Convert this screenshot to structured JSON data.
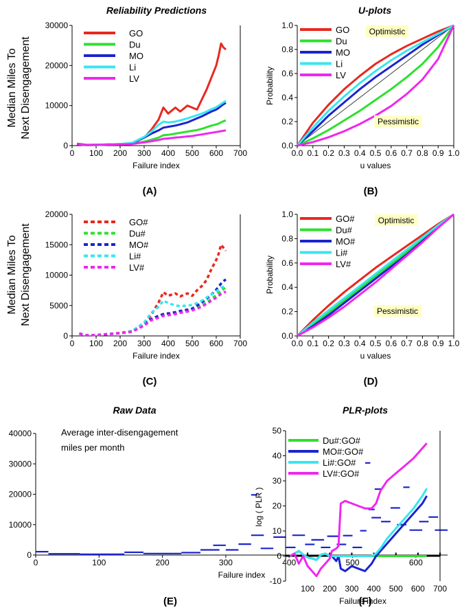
{
  "captions": {
    "a": "(A)",
    "b": "(B)",
    "c": "(C)",
    "d": "(D)",
    "e": "(E)",
    "f": "(F)"
  },
  "shared_ylabel": [
    "Median Miles To",
    "Next Disengagement"
  ],
  "chart_data": [
    {
      "id": "A",
      "type": "line",
      "title": "Reliability Predictions",
      "xlabel": "Failure index",
      "ylabel": "",
      "xlim": [
        0,
        700
      ],
      "ylim": [
        0,
        30000
      ],
      "xticks": [
        0,
        100,
        200,
        300,
        400,
        500,
        600,
        700
      ],
      "yticks": [
        0,
        10000,
        20000,
        30000
      ],
      "legend_position": "top-left",
      "x": [
        20,
        60,
        100,
        150,
        200,
        250,
        300,
        330,
        360,
        380,
        400,
        430,
        450,
        480,
        500,
        520,
        540,
        560,
        580,
        600,
        610,
        620,
        630,
        640
      ],
      "series": [
        {
          "name": "GO",
          "color": "#e8281e",
          "values": [
            500,
            200,
            250,
            300,
            400,
            600,
            2000,
            4000,
            6500,
            9500,
            8000,
            9500,
            8500,
            10000,
            9500,
            9000,
            11500,
            14000,
            17000,
            20000,
            22500,
            25500,
            24500,
            24000
          ]
        },
        {
          "name": "Du",
          "color": "#2ee02e",
          "values": [
            400,
            150,
            150,
            250,
            350,
            500,
            1000,
            1500,
            2000,
            2600,
            2700,
            3000,
            3200,
            3500,
            3700,
            3900,
            4200,
            4600,
            5000,
            5300,
            5500,
            5800,
            6100,
            6300
          ]
        },
        {
          "name": "MO",
          "color": "#1b24cc",
          "values": [
            400,
            150,
            200,
            300,
            400,
            600,
            2000,
            3000,
            3800,
            4500,
            4700,
            5000,
            5300,
            5800,
            6300,
            6800,
            7300,
            7900,
            8500,
            9000,
            9400,
            9900,
            10300,
            10700
          ]
        },
        {
          "name": "Li",
          "color": "#38e6f0",
          "values": [
            400,
            150,
            200,
            300,
            400,
            700,
            2200,
            3500,
            5200,
            6000,
            5800,
            6000,
            6300,
            6800,
            7200,
            7600,
            8000,
            8500,
            9100,
            9600,
            10000,
            10400,
            10800,
            11200
          ]
        },
        {
          "name": "LV",
          "color": "#ee28ee",
          "values": [
            400,
            100,
            150,
            250,
            300,
            400,
            800,
            1100,
            1400,
            1700,
            1800,
            2000,
            2100,
            2300,
            2400,
            2600,
            2800,
            3000,
            3200,
            3400,
            3500,
            3600,
            3700,
            3800
          ]
        }
      ]
    },
    {
      "id": "B",
      "type": "line",
      "title": "U-plots",
      "xlabel": "u values",
      "ylabel": "Probability",
      "xlim": [
        0,
        1
      ],
      "ylim": [
        0,
        1
      ],
      "xtick_labels": [
        "0.0",
        "0.1",
        "0.2",
        "0.3",
        "0.4",
        "0.5",
        "0.6",
        "0.7",
        "0.8",
        "0.9",
        "1.0"
      ],
      "ytick_labels": [
        "0.0",
        "0.2",
        "0.4",
        "0.6",
        "0.8",
        "1.0"
      ],
      "legend_position": "top-left",
      "annotations": [
        "Optimistic",
        "Pessimistic"
      ],
      "x": [
        0,
        0.1,
        0.2,
        0.3,
        0.4,
        0.5,
        0.6,
        0.7,
        0.8,
        0.9,
        1.0
      ],
      "series": [
        {
          "name": "GO",
          "color": "#e8281e",
          "values": [
            0,
            0.19,
            0.34,
            0.47,
            0.58,
            0.68,
            0.76,
            0.83,
            0.89,
            0.95,
            1.0
          ]
        },
        {
          "name": "Du",
          "color": "#2ee02e",
          "values": [
            0,
            0.06,
            0.13,
            0.21,
            0.29,
            0.38,
            0.47,
            0.57,
            0.68,
            0.82,
            1.0
          ]
        },
        {
          "name": "MO",
          "color": "#1b24cc",
          "values": [
            0,
            0.12,
            0.25,
            0.36,
            0.47,
            0.57,
            0.66,
            0.75,
            0.84,
            0.92,
            1.0
          ]
        },
        {
          "name": "Li",
          "color": "#38e6f0",
          "values": [
            0,
            0.15,
            0.29,
            0.41,
            0.52,
            0.62,
            0.71,
            0.79,
            0.86,
            0.93,
            1.0
          ]
        },
        {
          "name": "LV",
          "color": "#ee28ee",
          "values": [
            0,
            0.03,
            0.07,
            0.12,
            0.18,
            0.25,
            0.33,
            0.43,
            0.55,
            0.72,
            1.0
          ]
        }
      ]
    },
    {
      "id": "C",
      "type": "line",
      "title": "",
      "xlabel": "Failure index",
      "ylabel": "",
      "xlim": [
        0,
        700
      ],
      "ylim": [
        0,
        20000
      ],
      "xticks": [
        0,
        100,
        200,
        300,
        400,
        500,
        600,
        700
      ],
      "yticks": [
        0,
        5000,
        10000,
        15000,
        20000
      ],
      "legend_position": "top-left",
      "line_style": "dotted",
      "x": [
        30,
        60,
        100,
        150,
        200,
        250,
        300,
        330,
        360,
        380,
        400,
        430,
        450,
        480,
        500,
        520,
        540,
        560,
        580,
        600,
        610,
        620,
        630,
        640
      ],
      "series": [
        {
          "name": "GO#",
          "color": "#e8281e",
          "values": [
            400,
            100,
            150,
            300,
            500,
            800,
            2000,
            3500,
            5500,
            7200,
            6600,
            7000,
            6500,
            7000,
            6600,
            7500,
            8200,
            9200,
            11000,
            12500,
            13500,
            15000,
            14500,
            14000
          ]
        },
        {
          "name": "Du#",
          "color": "#2ee02e",
          "values": [
            400,
            100,
            150,
            300,
            450,
            700,
            1800,
            2600,
            3100,
            3400,
            3500,
            3700,
            3900,
            4100,
            4300,
            4600,
            5000,
            5500,
            6100,
            6700,
            7100,
            7400,
            7700,
            8000
          ]
        },
        {
          "name": "MO#",
          "color": "#1b24cc",
          "values": [
            400,
            100,
            150,
            300,
            450,
            700,
            1900,
            2800,
            3300,
            3600,
            3700,
            3900,
            4100,
            4300,
            4500,
            5000,
            5500,
            6100,
            6800,
            7600,
            8100,
            8600,
            9000,
            9300
          ]
        },
        {
          "name": "Li#",
          "color": "#38e6f0",
          "values": [
            400,
            100,
            150,
            300,
            450,
            800,
            2200,
            3800,
            4800,
            5800,
            5400,
            5000,
            4900,
            5000,
            5100,
            5400,
            5800,
            6300,
            6800,
            7300,
            7600,
            7900,
            8100,
            8300
          ]
        },
        {
          "name": "LV#",
          "color": "#ee28ee",
          "values": [
            400,
            100,
            150,
            300,
            450,
            700,
            1700,
            2600,
            3000,
            3300,
            3400,
            3600,
            3800,
            4000,
            4200,
            4500,
            4800,
            5300,
            5800,
            6300,
            6600,
            6900,
            7100,
            7300
          ]
        }
      ]
    },
    {
      "id": "D",
      "type": "line",
      "title": "",
      "xlabel": "u values",
      "ylabel": "Probability",
      "xlim": [
        0,
        1
      ],
      "ylim": [
        0,
        1
      ],
      "xtick_labels": [
        "0.0",
        "0.1",
        "0.2",
        "0.3",
        "0.4",
        "0.5",
        "0.6",
        "0.7",
        "0.8",
        "0.9",
        "1.0"
      ],
      "ytick_labels": [
        "0.0",
        "0.2",
        "0.4",
        "0.6",
        "0.8",
        "1.0"
      ],
      "legend_position": "top-left",
      "annotations": [
        "Optimistic",
        "Pessimistic"
      ],
      "x": [
        0,
        0.1,
        0.2,
        0.3,
        0.4,
        0.5,
        0.6,
        0.7,
        0.8,
        0.9,
        1.0
      ],
      "series": [
        {
          "name": "GO#",
          "color": "#e8281e",
          "values": [
            0,
            0.13,
            0.25,
            0.36,
            0.46,
            0.56,
            0.65,
            0.74,
            0.83,
            0.92,
            1.0
          ]
        },
        {
          "name": "Du#",
          "color": "#2ee02e",
          "values": [
            0,
            0.09,
            0.19,
            0.29,
            0.39,
            0.49,
            0.59,
            0.69,
            0.79,
            0.9,
            1.0
          ]
        },
        {
          "name": "MO#",
          "color": "#1b24cc",
          "values": [
            0,
            0.08,
            0.17,
            0.27,
            0.37,
            0.47,
            0.57,
            0.67,
            0.78,
            0.89,
            1.0
          ]
        },
        {
          "name": "Li#",
          "color": "#38e6f0",
          "values": [
            0,
            0.11,
            0.21,
            0.31,
            0.41,
            0.51,
            0.61,
            0.71,
            0.81,
            0.91,
            1.0
          ]
        },
        {
          "name": "LV#",
          "color": "#ee28ee",
          "values": [
            0,
            0.07,
            0.15,
            0.24,
            0.34,
            0.44,
            0.55,
            0.66,
            0.77,
            0.89,
            1.0
          ]
        }
      ]
    },
    {
      "id": "E",
      "type": "scatter",
      "title": "Raw Data",
      "xlabel": "Failure index",
      "ylabel": "",
      "xlim": [
        0,
        650
      ],
      "ylim": [
        0,
        40000
      ],
      "xticks": [
        0,
        100,
        200,
        300,
        400,
        500,
        600
      ],
      "yticks": [
        0,
        10000,
        20000,
        30000,
        40000
      ],
      "annotation": [
        "Average inter-disengagement",
        "miles per month"
      ],
      "color": "#1b24cc",
      "segments": [
        [
          0,
          20,
          1100
        ],
        [
          20,
          70,
          400
        ],
        [
          70,
          140,
          250
        ],
        [
          140,
          170,
          900
        ],
        [
          170,
          230,
          500
        ],
        [
          230,
          260,
          800
        ],
        [
          260,
          290,
          1700
        ],
        [
          280,
          300,
          3200
        ],
        [
          300,
          320,
          1700
        ],
        [
          320,
          340,
          3600
        ],
        [
          340,
          350,
          19800
        ],
        [
          340,
          360,
          6500
        ],
        [
          355,
          375,
          2200
        ],
        [
          375,
          395,
          5900
        ],
        [
          395,
          410,
          2500
        ],
        [
          405,
          425,
          6500
        ],
        [
          425,
          440,
          3500
        ],
        [
          435,
          455,
          5000
        ],
        [
          450,
          465,
          2500
        ],
        [
          460,
          480,
          6200
        ],
        [
          475,
          490,
          3500
        ],
        [
          485,
          500,
          6400
        ],
        [
          500,
          515,
          2500
        ],
        [
          512,
          522,
          8000
        ],
        [
          520,
          528,
          30300
        ],
        [
          525,
          535,
          15000
        ],
        [
          530,
          545,
          12300
        ],
        [
          535,
          545,
          21700
        ],
        [
          545,
          560,
          11000
        ],
        [
          560,
          575,
          15500
        ],
        [
          570,
          585,
          10000
        ],
        [
          580,
          590,
          22300
        ],
        [
          590,
          610,
          8200
        ],
        [
          605,
          620,
          11000
        ],
        [
          620,
          635,
          12500
        ],
        [
          630,
          650,
          8200
        ]
      ]
    },
    {
      "id": "F",
      "type": "line",
      "title": "PLR-plots",
      "xlabel": "Failure index",
      "ylabel": "log ( PLR )",
      "xlim": [
        0,
        700
      ],
      "ylim": [
        -10,
        50
      ],
      "xticks": [
        100,
        200,
        300,
        400,
        500,
        600,
        700
      ],
      "yticks": [
        -10,
        0,
        10,
        20,
        30,
        40,
        50
      ],
      "legend_position": "top-left",
      "x": [
        20,
        40,
        60,
        80,
        100,
        120,
        140,
        160,
        180,
        200,
        210,
        230,
        240,
        250,
        270,
        300,
        330,
        360,
        390,
        410,
        430,
        460,
        500,
        540,
        580,
        620,
        640
      ],
      "series": [
        {
          "name": "Du#:GO#",
          "color": "#2ee02e",
          "values": [
            0,
            1,
            2,
            0.5,
            -0.5,
            -1,
            -1.5,
            0.5,
            1,
            0,
            0,
            0,
            0,
            0,
            0,
            0,
            0,
            0,
            0,
            0,
            0,
            0,
            0,
            0,
            0,
            0,
            0
          ]
        },
        {
          "name": "MO#:GO#",
          "color": "#1b24cc",
          "values": [
            0,
            1,
            2,
            0.5,
            -0.5,
            -1,
            -1.5,
            0.5,
            1,
            0,
            0,
            -2,
            0,
            -5,
            -6,
            -4,
            -5,
            -6,
            -3,
            0,
            2,
            5,
            9,
            13,
            17,
            21,
            24
          ]
        },
        {
          "name": "Li#:GO#",
          "color": "#38e6f0",
          "values": [
            0,
            1,
            2,
            0.5,
            -0.5,
            -1,
            -1.5,
            0.5,
            1,
            0,
            0,
            0,
            0,
            0,
            0,
            0,
            0,
            0,
            0,
            1,
            3,
            7,
            11,
            15,
            19,
            24,
            27
          ]
        },
        {
          "name": "LV#:GO#",
          "color": "#ee28ee",
          "values": [
            0,
            1,
            -3,
            0,
            -4,
            -6,
            -8,
            -5,
            -3,
            -1,
            2,
            3,
            4,
            21,
            22,
            21,
            20,
            19,
            19,
            21,
            26,
            30,
            33,
            36,
            39,
            43,
            45
          ]
        }
      ]
    }
  ]
}
